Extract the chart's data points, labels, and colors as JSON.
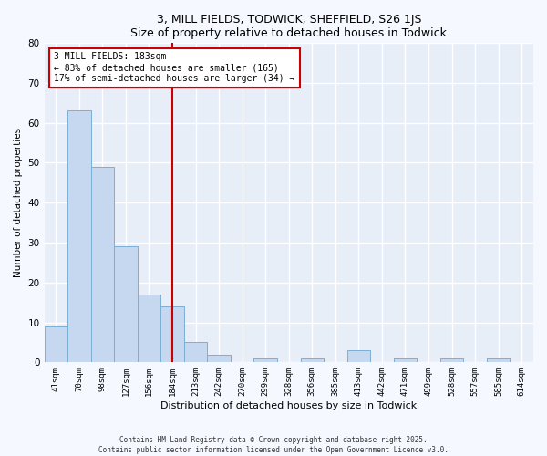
{
  "title": "3, MILL FIELDS, TODWICK, SHEFFIELD, S26 1JS",
  "subtitle": "Size of property relative to detached houses in Todwick",
  "bar_labels": [
    "41sqm",
    "70sqm",
    "98sqm",
    "127sqm",
    "156sqm",
    "184sqm",
    "213sqm",
    "242sqm",
    "270sqm",
    "299sqm",
    "328sqm",
    "356sqm",
    "385sqm",
    "413sqm",
    "442sqm",
    "471sqm",
    "499sqm",
    "528sqm",
    "557sqm",
    "585sqm",
    "614sqm"
  ],
  "bar_values": [
    9,
    63,
    49,
    29,
    17,
    14,
    5,
    2,
    0,
    1,
    0,
    1,
    0,
    3,
    0,
    1,
    0,
    1,
    0,
    1,
    0
  ],
  "bar_color": "#c5d8f0",
  "bar_edge_color": "#7bafd4",
  "ylim": [
    0,
    80
  ],
  "yticks": [
    0,
    10,
    20,
    30,
    40,
    50,
    60,
    70,
    80
  ],
  "ylabel": "Number of detached properties",
  "xlabel": "Distribution of detached houses by size in Todwick",
  "property_bar_index": 5,
  "property_label": "3 MILL FIELDS: 183sqm",
  "annotation_line1": "← 83% of detached houses are smaller (165)",
  "annotation_line2": "17% of semi-detached houses are larger (34) →",
  "vline_color": "#cc0000",
  "annotation_box_edge_color": "#cc0000",
  "background_color": "#f5f8ff",
  "plot_bg_color": "#e8eef8",
  "grid_color": "#ffffff",
  "footer_line1": "Contains HM Land Registry data © Crown copyright and database right 2025.",
  "footer_line2": "Contains public sector information licensed under the Open Government Licence v3.0."
}
